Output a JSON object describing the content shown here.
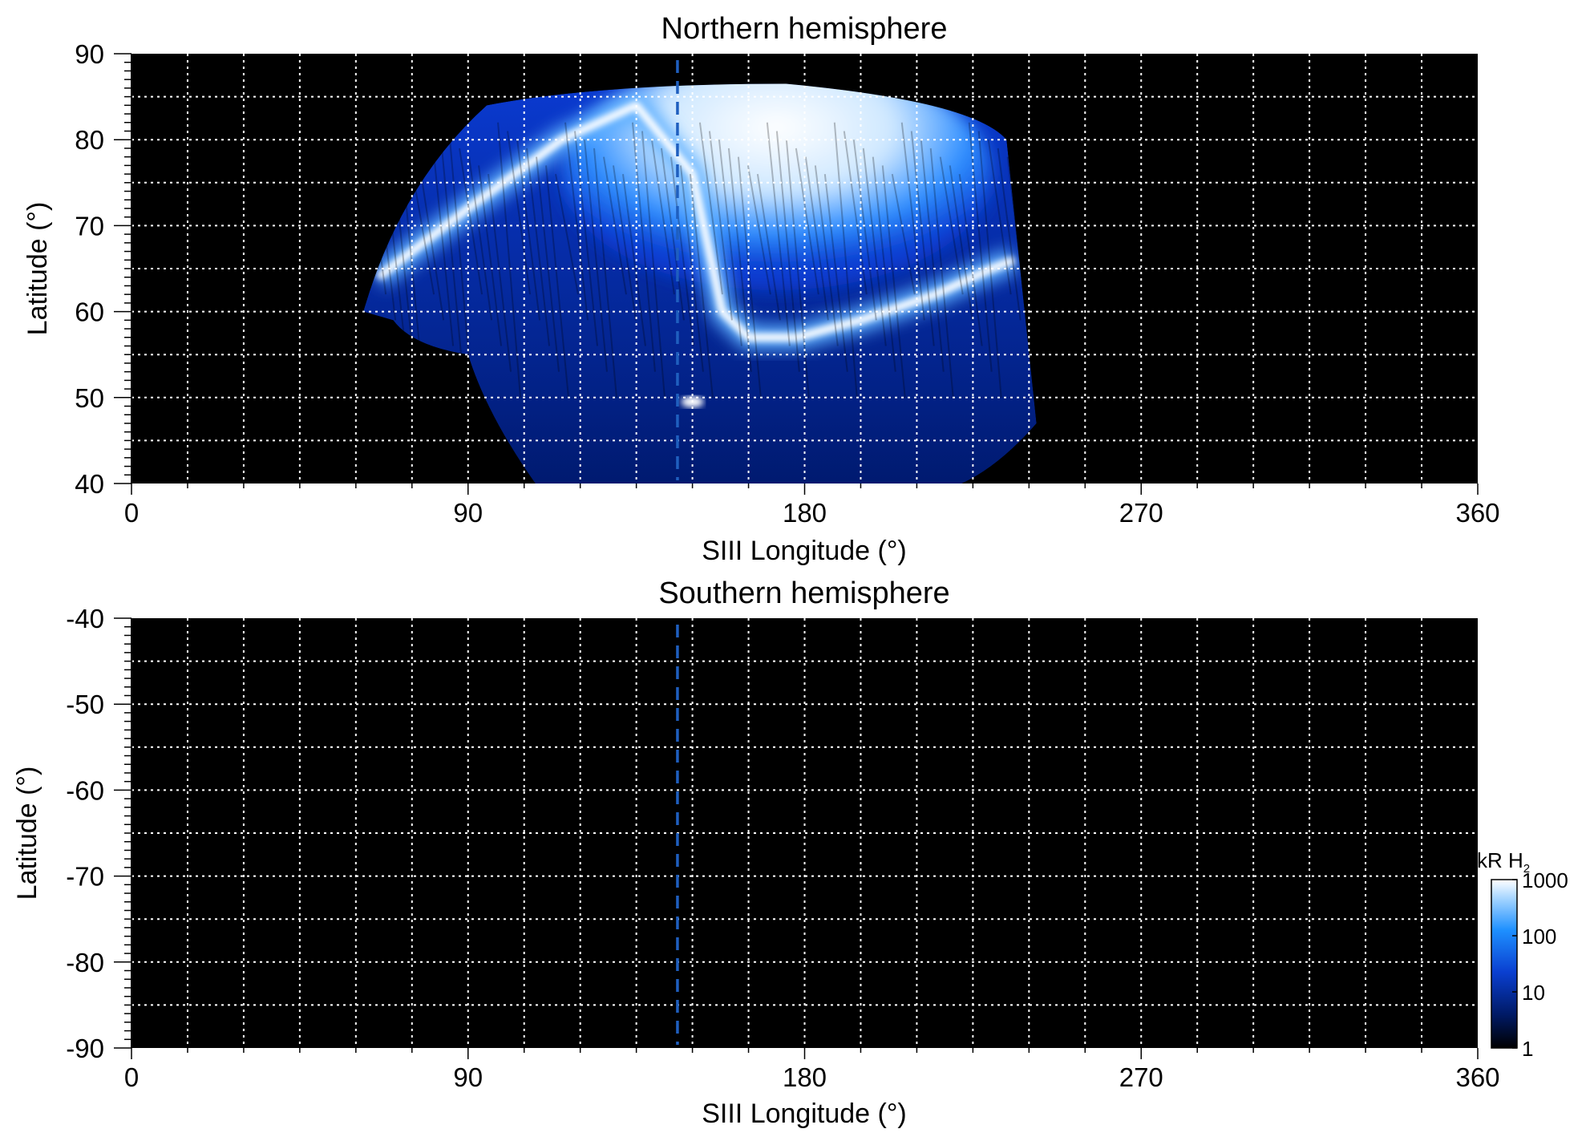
{
  "chart_data": [
    {
      "type": "heatmap",
      "title": "Northern hemisphere",
      "xlabel": "SIII Longitude (°)",
      "ylabel": "Latitude (°)",
      "xlim": [
        0,
        360
      ],
      "ylim": [
        40,
        90
      ],
      "xticks": [
        0,
        90,
        180,
        270,
        360
      ],
      "yticks": [
        40,
        50,
        60,
        70,
        80,
        90
      ],
      "grid": true,
      "background": "#000000",
      "marker_line": {
        "style": "dashed",
        "color": "#1f5fbf",
        "x": 146
      },
      "emission": {
        "main_oval": {
          "lon": [
            66,
            90,
            115,
            135,
            150,
            158,
            165,
            178,
            195,
            215,
            230,
            236
          ],
          "lat": [
            64,
            72,
            80,
            84,
            76,
            60,
            57,
            57,
            59,
            62,
            65,
            66
          ]
        },
        "polar_region": {
          "lon_range": [
            115,
            230
          ],
          "lat_range": [
            60,
            87
          ],
          "level_kR": 1000
        },
        "bright_spot": {
          "lon": 150,
          "lat": 49.5
        },
        "diffuse_region": {
          "lon_range": [
            100,
            240
          ],
          "lat_range": [
            40,
            60
          ],
          "level_kR": 30
        },
        "coverage_lon_range": [
          62,
          242
        ],
        "coverage_lat_max": 86.5
      }
    },
    {
      "type": "heatmap",
      "title": "Southern hemisphere",
      "xlabel": "SIII Longitude (°)",
      "ylabel": "Latitude (°)",
      "xlim": [
        0,
        360
      ],
      "ylim": [
        -90,
        -40
      ],
      "xticks": [
        0,
        90,
        180,
        270,
        360
      ],
      "yticks": [
        -40,
        -50,
        -60,
        -70,
        -80,
        -90
      ],
      "grid": true,
      "background": "#000000",
      "marker_line": {
        "style": "dashed",
        "color": "#1f5fbf",
        "x": 146
      },
      "emission": null
    }
  ],
  "colorbar": {
    "label": "kR H",
    "label_subscript": "2",
    "scale": "log",
    "range": [
      1,
      1000
    ],
    "ticks": [
      "1000",
      "100",
      "10",
      "1"
    ],
    "colors": [
      "#000000",
      "#001a66",
      "#0a3fd0",
      "#1e90ff",
      "#9fd2ff",
      "#ffffff"
    ]
  }
}
